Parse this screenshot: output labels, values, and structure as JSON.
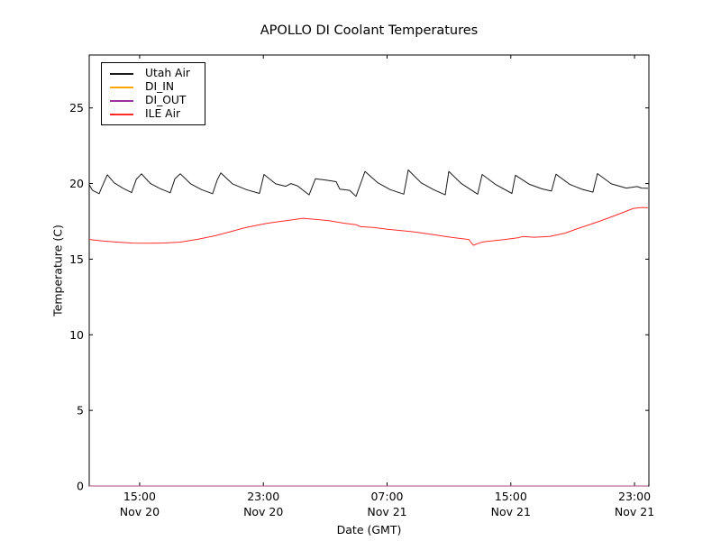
{
  "figure": {
    "background": "#ffffff"
  },
  "chart_data": {
    "type": "line",
    "title": "APOLLO DI Coolant Temperatures",
    "xlabel": "Date (GMT)",
    "ylabel": "Temperature (C)",
    "x_unit": "hours since Nov 20 00:00 GMT",
    "xlim": [
      11.74,
      47.93
    ],
    "ylim": [
      0,
      28.5
    ],
    "grid": false,
    "legend_position": "upper left",
    "frame_color": "#000000",
    "tick_label_color": "#000000",
    "x_ticks": [
      {
        "t": 15,
        "line1": "15:00",
        "line2": "Nov 20"
      },
      {
        "t": 23,
        "line1": "23:00",
        "line2": "Nov 20"
      },
      {
        "t": 31,
        "line1": "07:00",
        "line2": "Nov 21"
      },
      {
        "t": 39,
        "line1": "15:00",
        "line2": "Nov 21"
      },
      {
        "t": 47,
        "line1": "23:00",
        "line2": "Nov 21"
      }
    ],
    "y_ticks": [
      0,
      5,
      10,
      15,
      20,
      25
    ],
    "series": [
      {
        "name": "Utah Air",
        "color": "#1a1a1a",
        "opacity": 1,
        "points": [
          [
            11.74,
            19.93
          ],
          [
            11.95,
            19.55
          ],
          [
            12.38,
            19.33
          ],
          [
            12.55,
            19.75
          ],
          [
            12.91,
            20.58
          ],
          [
            13.35,
            20.05
          ],
          [
            13.9,
            19.7
          ],
          [
            14.48,
            19.4
          ],
          [
            14.78,
            20.28
          ],
          [
            15.12,
            20.64
          ],
          [
            15.7,
            20.0
          ],
          [
            16.3,
            19.68
          ],
          [
            16.98,
            19.39
          ],
          [
            17.28,
            20.32
          ],
          [
            17.63,
            20.64
          ],
          [
            18.3,
            19.98
          ],
          [
            19.0,
            19.6
          ],
          [
            19.72,
            19.33
          ],
          [
            20.02,
            20.25
          ],
          [
            20.25,
            20.7
          ],
          [
            21.0,
            19.98
          ],
          [
            21.9,
            19.6
          ],
          [
            22.75,
            19.35
          ],
          [
            23.04,
            20.6
          ],
          [
            23.8,
            19.98
          ],
          [
            24.45,
            19.82
          ],
          [
            24.79,
            20.0
          ],
          [
            25.2,
            19.85
          ],
          [
            25.96,
            19.25
          ],
          [
            26.37,
            20.32
          ],
          [
            27.1,
            20.22
          ],
          [
            27.71,
            20.12
          ],
          [
            27.94,
            19.63
          ],
          [
            28.58,
            19.55
          ],
          [
            28.99,
            19.15
          ],
          [
            29.4,
            20.3
          ],
          [
            29.57,
            20.8
          ],
          [
            30.4,
            20.05
          ],
          [
            31.2,
            19.6
          ],
          [
            32.08,
            19.3
          ],
          [
            32.37,
            20.9
          ],
          [
            33.2,
            20.05
          ],
          [
            34.0,
            19.6
          ],
          [
            34.76,
            19.25
          ],
          [
            34.99,
            20.8
          ],
          [
            35.8,
            20.0
          ],
          [
            36.86,
            19.3
          ],
          [
            37.15,
            20.6
          ],
          [
            38.0,
            19.95
          ],
          [
            39.07,
            19.35
          ],
          [
            39.3,
            20.55
          ],
          [
            40.2,
            19.95
          ],
          [
            41.0,
            19.65
          ],
          [
            41.63,
            19.5
          ],
          [
            41.92,
            20.62
          ],
          [
            42.8,
            19.95
          ],
          [
            43.6,
            19.62
          ],
          [
            44.31,
            19.43
          ],
          [
            44.6,
            20.66
          ],
          [
            45.5,
            19.98
          ],
          [
            46.47,
            19.7
          ],
          [
            47.17,
            19.8
          ],
          [
            47.46,
            19.7
          ],
          [
            47.87,
            19.68
          ]
        ]
      },
      {
        "name": "DI_IN",
        "color": "#ffa500",
        "opacity": 1,
        "points": [
          [
            11.74,
            0
          ],
          [
            47.87,
            0
          ]
        ]
      },
      {
        "name": "DI_OUT",
        "color": "#993399",
        "opacity": 0.8,
        "points": [
          [
            11.74,
            0
          ],
          [
            47.87,
            0
          ]
        ]
      },
      {
        "name": "ILE Air",
        "color": "#ff2a2a",
        "opacity": 1,
        "points": [
          [
            11.74,
            16.3
          ],
          [
            12.6,
            16.2
          ],
          [
            13.55,
            16.13
          ],
          [
            14.6,
            16.06
          ],
          [
            15.64,
            16.05
          ],
          [
            16.6,
            16.07
          ],
          [
            17.63,
            16.13
          ],
          [
            18.8,
            16.32
          ],
          [
            19.9,
            16.55
          ],
          [
            21.0,
            16.85
          ],
          [
            21.7,
            17.05
          ],
          [
            22.6,
            17.25
          ],
          [
            23.21,
            17.36
          ],
          [
            24.03,
            17.48
          ],
          [
            25.0,
            17.62
          ],
          [
            25.55,
            17.7
          ],
          [
            26.5,
            17.62
          ],
          [
            27.24,
            17.55
          ],
          [
            28.2,
            17.38
          ],
          [
            29.0,
            17.28
          ],
          [
            29.3,
            17.15
          ],
          [
            30.1,
            17.1
          ],
          [
            31.03,
            16.98
          ],
          [
            32.0,
            16.88
          ],
          [
            32.78,
            16.8
          ],
          [
            34.0,
            16.62
          ],
          [
            35.11,
            16.45
          ],
          [
            36.28,
            16.3
          ],
          [
            36.57,
            15.92
          ],
          [
            37.0,
            16.08
          ],
          [
            37.27,
            16.15
          ],
          [
            38.61,
            16.3
          ],
          [
            39.5,
            16.42
          ],
          [
            39.77,
            16.5
          ],
          [
            40.5,
            16.45
          ],
          [
            41.52,
            16.5
          ],
          [
            42.5,
            16.72
          ],
          [
            43.27,
            17.0
          ],
          [
            44.72,
            17.5
          ],
          [
            46.0,
            17.98
          ],
          [
            46.93,
            18.36
          ],
          [
            47.5,
            18.42
          ],
          [
            47.87,
            18.4
          ]
        ]
      }
    ]
  }
}
